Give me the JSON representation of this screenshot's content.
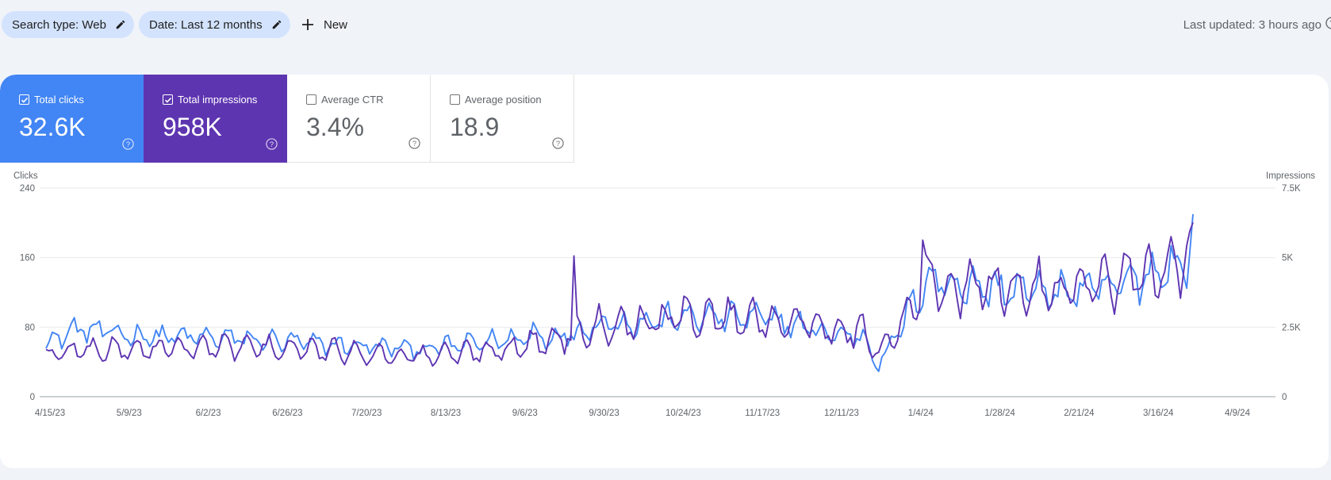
{
  "filters": {
    "search_type": "Search type: Web",
    "date": "Date: Last 12 months",
    "new_label": "New"
  },
  "last_updated": "Last updated: 3 hours ago",
  "metrics": [
    {
      "label": "Total clicks",
      "value": "32.6K",
      "checked": true,
      "color": "#4285f4"
    },
    {
      "label": "Total impressions",
      "value": "958K",
      "checked": true,
      "color": "#5e35b1"
    },
    {
      "label": "Average CTR",
      "value": "3.4%",
      "checked": false
    },
    {
      "label": "Average position",
      "value": "18.9",
      "checked": false
    }
  ],
  "chart_data": {
    "type": "line",
    "left_axis_label": "Clicks",
    "right_axis_label": "Impressions",
    "left_ticks": [
      "0",
      "80",
      "160",
      "240"
    ],
    "right_ticks": [
      "0",
      "2.5K",
      "5K",
      "7.5K"
    ],
    "left_ylim": [
      0,
      240
    ],
    "right_ylim": [
      0,
      7500
    ],
    "grid": true,
    "x_tick_labels": [
      "4/15/23",
      "5/9/23",
      "6/2/23",
      "6/26/23",
      "7/20/23",
      "8/13/23",
      "9/6/23",
      "9/30/23",
      "10/24/23",
      "11/17/23",
      "12/11/23",
      "1/4/24",
      "1/28/24",
      "2/21/24",
      "3/16/24",
      "4/9/24"
    ],
    "x_range": [
      "4/15/23",
      "4/12/24"
    ],
    "series": [
      {
        "name": "Total clicks",
        "axis": "left",
        "color": "#4285f4",
        "keyframes": [
          [
            0,
            62
          ],
          [
            10,
            78
          ],
          [
            30,
            70
          ],
          [
            60,
            67
          ],
          [
            90,
            60
          ],
          [
            120,
            55
          ],
          [
            150,
            67
          ],
          [
            168,
            72
          ],
          [
            175,
            85
          ],
          [
            190,
            85
          ],
          [
            205,
            92
          ],
          [
            230,
            90
          ],
          [
            250,
            72
          ],
          [
            260,
            70
          ],
          [
            265,
            35
          ],
          [
            275,
            100
          ],
          [
            280,
            135
          ],
          [
            300,
            125
          ],
          [
            320,
            120
          ],
          [
            340,
            125
          ],
          [
            350,
            140
          ],
          [
            365,
            158
          ],
          [
            363,
            210
          ]
        ]
      },
      {
        "name": "Total impressions",
        "axis": "right",
        "color": "#5e35b1",
        "keyframes": [
          [
            0,
            1450
          ],
          [
            10,
            1700
          ],
          [
            30,
            1700
          ],
          [
            60,
            1800
          ],
          [
            90,
            1650
          ],
          [
            120,
            1450
          ],
          [
            140,
            1650
          ],
          [
            160,
            2000
          ],
          [
            168,
            2300
          ],
          [
            175,
            2600
          ],
          [
            190,
            2700
          ],
          [
            205,
            2900
          ],
          [
            230,
            2800
          ],
          [
            250,
            2500
          ],
          [
            260,
            2300
          ],
          [
            265,
            1500
          ],
          [
            275,
            3000
          ],
          [
            280,
            4100
          ],
          [
            300,
            3900
          ],
          [
            320,
            3900
          ],
          [
            340,
            4100
          ],
          [
            350,
            4300
          ],
          [
            365,
            5200
          ]
        ]
      }
    ]
  }
}
